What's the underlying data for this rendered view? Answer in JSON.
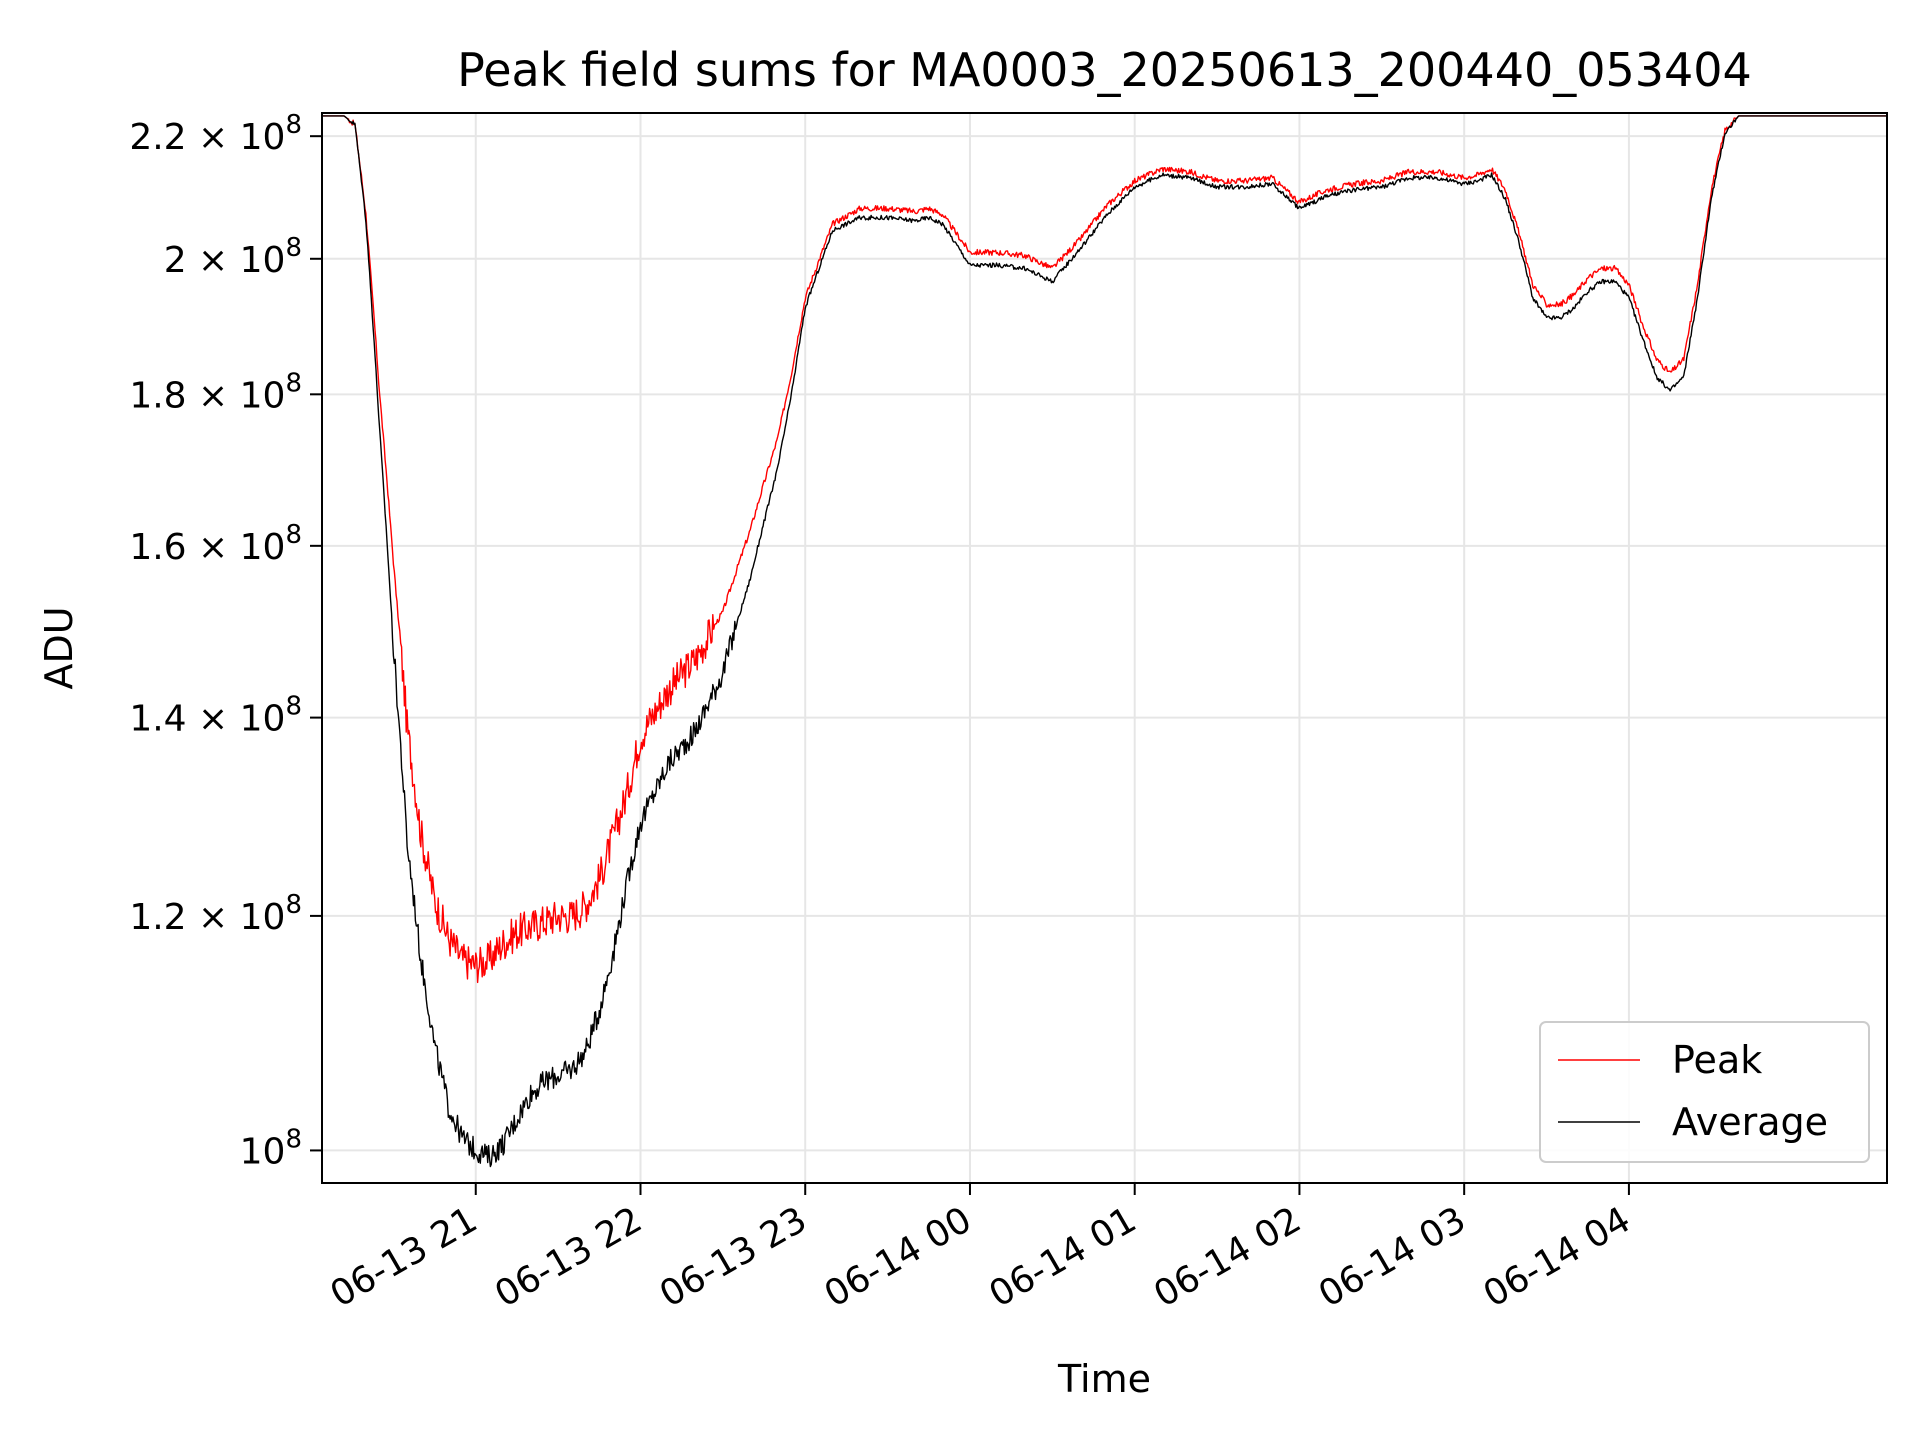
{
  "chart_data": {
    "type": "line",
    "title": "Peak field sums for MA0003_20250613_200440_053404",
    "xlabel": "Time",
    "ylabel": "ADU",
    "y_scale": "log",
    "ylim": [
      97500000,
      224000000
    ],
    "xlim": [
      "2025-06-13T20:04",
      "2025-06-14T05:34"
    ],
    "grid": true,
    "legend_position": "lower-right",
    "x_ticks": [
      {
        "value": "2025-06-13T21:00",
        "label": "06-13 21"
      },
      {
        "value": "2025-06-13T22:00",
        "label": "06-13 22"
      },
      {
        "value": "2025-06-13T23:00",
        "label": "06-13 23"
      },
      {
        "value": "2025-06-14T00:00",
        "label": "06-14 00"
      },
      {
        "value": "2025-06-14T01:00",
        "label": "06-14 01"
      },
      {
        "value": "2025-06-14T02:00",
        "label": "06-14 02"
      },
      {
        "value": "2025-06-14T03:00",
        "label": "06-14 03"
      },
      {
        "value": "2025-06-14T04:00",
        "label": "06-14 04"
      }
    ],
    "y_ticks": [
      {
        "value": 100000000,
        "mantissa": "",
        "exp": "8"
      },
      {
        "value": 120000000,
        "mantissa": "1.2",
        "exp": "8"
      },
      {
        "value": 140000000,
        "mantissa": "1.4",
        "exp": "8"
      },
      {
        "value": 160000000,
        "mantissa": "1.6",
        "exp": "8"
      },
      {
        "value": 180000000,
        "mantissa": "1.8",
        "exp": "8"
      },
      {
        "value": 200000000,
        "mantissa": "2",
        "exp": "8"
      },
      {
        "value": 220000000,
        "mantissa": "2.2",
        "exp": "8"
      }
    ],
    "series": [
      {
        "name": "Peak",
        "color": "#ff0000",
        "noise": [
          0.0045,
          0.028
        ],
        "x": [
          "2025-06-13T20:04",
          "2025-06-13T20:12",
          "2025-06-13T20:16",
          "2025-06-13T20:20",
          "2025-06-13T20:25",
          "2025-06-13T20:30",
          "2025-06-13T20:35",
          "2025-06-13T20:40",
          "2025-06-13T20:45",
          "2025-06-13T20:50",
          "2025-06-13T20:55",
          "2025-06-13T21:00",
          "2025-06-13T21:05",
          "2025-06-13T21:10",
          "2025-06-13T21:15",
          "2025-06-13T21:20",
          "2025-06-13T21:25",
          "2025-06-13T21:30",
          "2025-06-13T21:35",
          "2025-06-13T21:40",
          "2025-06-13T21:45",
          "2025-06-13T21:50",
          "2025-06-13T21:55",
          "2025-06-13T22:00",
          "2025-06-13T22:10",
          "2025-06-13T22:20",
          "2025-06-13T22:30",
          "2025-06-13T22:40",
          "2025-06-13T22:50",
          "2025-06-13T22:55",
          "2025-06-13T23:00",
          "2025-06-13T23:10",
          "2025-06-13T23:20",
          "2025-06-13T23:30",
          "2025-06-13T23:40",
          "2025-06-13T23:45",
          "2025-06-13T23:50",
          "2025-06-14T00:00",
          "2025-06-14T00:10",
          "2025-06-14T00:20",
          "2025-06-14T00:25",
          "2025-06-14T00:30",
          "2025-06-14T00:40",
          "2025-06-14T00:50",
          "2025-06-14T01:00",
          "2025-06-14T01:10",
          "2025-06-14T01:20",
          "2025-06-14T01:30",
          "2025-06-14T01:40",
          "2025-06-14T01:50",
          "2025-06-14T02:00",
          "2025-06-14T02:10",
          "2025-06-14T02:20",
          "2025-06-14T02:30",
          "2025-06-14T02:40",
          "2025-06-14T02:50",
          "2025-06-14T03:00",
          "2025-06-14T03:05",
          "2025-06-14T03:10",
          "2025-06-14T03:15",
          "2025-06-14T03:20",
          "2025-06-14T03:25",
          "2025-06-14T03:30",
          "2025-06-14T03:35",
          "2025-06-14T03:40",
          "2025-06-14T03:45",
          "2025-06-14T03:50",
          "2025-06-14T03:55",
          "2025-06-14T04:00",
          "2025-06-14T04:05",
          "2025-06-14T04:10",
          "2025-06-14T04:15",
          "2025-06-14T04:20",
          "2025-06-14T04:25",
          "2025-06-14T04:30",
          "2025-06-14T04:35",
          "2025-06-14T04:40",
          "2025-06-14T04:45",
          "2025-06-14T05:34"
        ],
        "values": [
          223500000,
          223500000,
          222000000,
          207000000,
          180000000,
          158000000,
          139000000,
          128000000,
          121500000,
          118000000,
          116000000,
          115500000,
          116000000,
          117500000,
          118500000,
          119000000,
          119500000,
          120000000,
          120000000,
          121000000,
          123500000,
          127500000,
          132000000,
          138000000,
          143000000,
          146500000,
          152000000,
          162000000,
          174000000,
          183000000,
          194000000,
          205500000,
          208000000,
          208000000,
          207500000,
          208000000,
          207000000,
          201000000,
          201000000,
          200500000,
          199500000,
          198500000,
          203000000,
          208500000,
          212500000,
          214500000,
          214000000,
          212500000,
          212500000,
          213000000,
          209000000,
          211000000,
          212000000,
          212500000,
          214000000,
          214000000,
          213000000,
          213500000,
          214500000,
          211000000,
          204000000,
          196000000,
          193000000,
          193000000,
          194500000,
          197000000,
          198500000,
          198500000,
          196000000,
          190000000,
          185000000,
          183000000,
          185000000,
          196000000,
          211000000,
          221000000,
          223500000,
          223500000,
          223500000
        ]
      },
      {
        "name": "Average",
        "color": "#000000",
        "noise": [
          0.0035,
          0.018
        ],
        "x": [
          "2025-06-13T20:04",
          "2025-06-13T20:12",
          "2025-06-13T20:16",
          "2025-06-13T20:20",
          "2025-06-13T20:25",
          "2025-06-13T20:30",
          "2025-06-13T20:35",
          "2025-06-13T20:40",
          "2025-06-13T20:45",
          "2025-06-13T20:50",
          "2025-06-13T20:55",
          "2025-06-13T21:00",
          "2025-06-13T21:05",
          "2025-06-13T21:10",
          "2025-06-13T21:15",
          "2025-06-13T21:20",
          "2025-06-13T21:25",
          "2025-06-13T21:30",
          "2025-06-13T21:35",
          "2025-06-13T21:40",
          "2025-06-13T21:45",
          "2025-06-13T21:50",
          "2025-06-13T21:55",
          "2025-06-13T22:00",
          "2025-06-13T22:10",
          "2025-06-13T22:20",
          "2025-06-13T22:30",
          "2025-06-13T22:40",
          "2025-06-13T22:50",
          "2025-06-13T22:55",
          "2025-06-13T23:00",
          "2025-06-13T23:10",
          "2025-06-13T23:20",
          "2025-06-13T23:30",
          "2025-06-13T23:40",
          "2025-06-13T23:45",
          "2025-06-13T23:50",
          "2025-06-14T00:00",
          "2025-06-14T00:10",
          "2025-06-14T00:20",
          "2025-06-14T00:25",
          "2025-06-14T00:30",
          "2025-06-14T00:40",
          "2025-06-14T00:50",
          "2025-06-14T01:00",
          "2025-06-14T01:10",
          "2025-06-14T01:20",
          "2025-06-14T01:30",
          "2025-06-14T01:40",
          "2025-06-14T01:50",
          "2025-06-14T02:00",
          "2025-06-14T02:10",
          "2025-06-14T02:20",
          "2025-06-14T02:30",
          "2025-06-14T02:40",
          "2025-06-14T02:50",
          "2025-06-14T03:00",
          "2025-06-14T03:05",
          "2025-06-14T03:10",
          "2025-06-14T03:15",
          "2025-06-14T03:20",
          "2025-06-14T03:25",
          "2025-06-14T03:30",
          "2025-06-14T03:35",
          "2025-06-14T03:40",
          "2025-06-14T03:45",
          "2025-06-14T03:50",
          "2025-06-14T03:55",
          "2025-06-14T04:00",
          "2025-06-14T04:05",
          "2025-06-14T04:10",
          "2025-06-14T04:15",
          "2025-06-14T04:20",
          "2025-06-14T04:25",
          "2025-06-14T04:30",
          "2025-06-14T04:35",
          "2025-06-14T04:40",
          "2025-06-14T04:45",
          "2025-06-14T05:34"
        ],
        "values": [
          223500000,
          223500000,
          222000000,
          206000000,
          175000000,
          148000000,
          127000000,
          116000000,
          108500000,
          103500000,
          101000000,
          100000000,
          99500000,
          100500000,
          102500000,
          104500000,
          105500000,
          106000000,
          106500000,
          108000000,
          111500000,
          116500000,
          123000000,
          129000000,
          135000000,
          138500000,
          145000000,
          156000000,
          170000000,
          180000000,
          192500000,
          204500000,
          206500000,
          206500000,
          206000000,
          206500000,
          205500000,
          199000000,
          199000000,
          198500000,
          197500000,
          196500000,
          201500000,
          207000000,
          211500000,
          213500000,
          213000000,
          211500000,
          211500000,
          212000000,
          208000000,
          210000000,
          211000000,
          211500000,
          213000000,
          213000000,
          212000000,
          212500000,
          213500000,
          209500000,
          202500000,
          194000000,
          191000000,
          191000000,
          192500000,
          195000000,
          196500000,
          196500000,
          194000000,
          188000000,
          182500000,
          180500000,
          182500000,
          194000000,
          209500000,
          220500000,
          223500000,
          223500000,
          223500000
        ]
      }
    ]
  }
}
